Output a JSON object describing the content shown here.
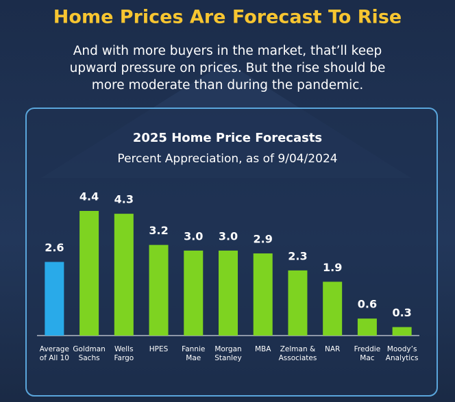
{
  "header": {
    "title": "Home Prices Are Forecast To Rise",
    "subtitle": [
      "And with more buyers in the market, that’ll keep",
      "upward pressure on prices. But the rise should be",
      "more moderate than during the pandemic."
    ]
  },
  "chart_data": {
    "type": "bar",
    "title": "2025 Home Price Forecasts",
    "subtitle": "Percent Appreciation, as of 9/04/2024",
    "categories": [
      "Average\nof All 10",
      "Goldman\nSachs",
      "Wells\nFargo",
      "HPES",
      "Fannie\nMae",
      "Morgan\nStanley",
      "MBA",
      "Zelman &\nAssociates",
      "NAR",
      "Freddie\nMac",
      "Moody’s\nAnalytics"
    ],
    "values": [
      2.6,
      4.4,
      4.3,
      3.2,
      3.0,
      3.0,
      2.9,
      2.3,
      1.9,
      0.6,
      0.3
    ],
    "value_labels": [
      "2.6",
      "4.4",
      "4.3",
      "3.2",
      "3.0",
      "3.0",
      "2.9",
      "2.3",
      "1.9",
      "0.6",
      "0.3"
    ],
    "colors": [
      "#29aae9",
      "#7ed321",
      "#7ed321",
      "#7ed321",
      "#7ed321",
      "#7ed321",
      "#7ed321",
      "#7ed321",
      "#7ed321",
      "#7ed321",
      "#7ed321"
    ]
  }
}
